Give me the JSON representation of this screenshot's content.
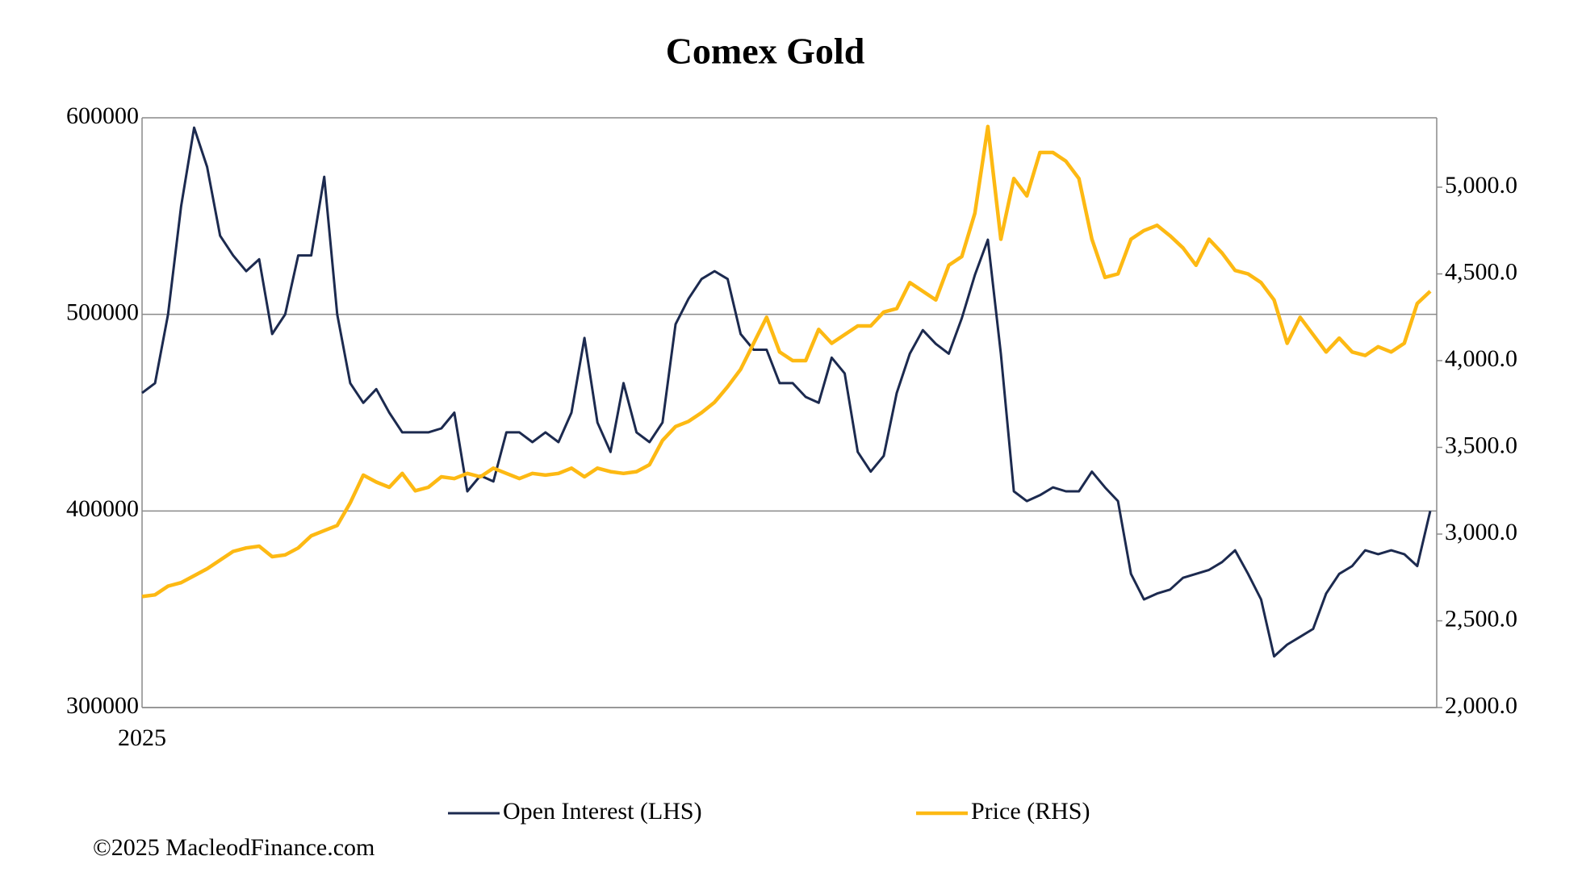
{
  "chart_data": {
    "type": "line",
    "title": "Comex Gold",
    "categories": [
      "2025",
      null,
      null,
      null,
      null,
      null,
      null,
      null,
      null,
      null,
      null,
      null,
      null,
      null,
      null,
      null,
      null,
      null,
      null,
      null,
      null,
      null,
      null,
      null,
      null,
      null,
      null,
      null,
      null,
      null,
      null,
      null,
      null,
      null,
      null,
      null,
      null,
      null,
      null,
      null,
      null,
      null,
      null,
      null,
      null,
      null,
      null,
      null,
      null,
      null,
      null,
      null,
      null,
      null,
      null,
      null,
      null,
      null,
      null,
      null,
      null,
      null,
      null,
      null,
      null,
      null,
      null,
      null,
      null,
      null,
      null,
      null,
      null,
      null,
      null,
      null,
      null,
      null,
      null,
      null,
      null,
      null,
      null,
      null,
      null,
      null,
      null,
      null,
      null,
      null,
      null,
      null,
      null,
      null,
      null,
      null,
      null,
      null,
      null,
      null
    ],
    "series": [
      {
        "name": "Open Interest (LHS)",
        "color": "#1c2a4f",
        "axis": "y",
        "values": [
          460000,
          465000,
          500000,
          555000,
          595000,
          575000,
          540000,
          530000,
          522000,
          528000,
          490000,
          500000,
          530000,
          530000,
          570000,
          500000,
          465000,
          455000,
          462000,
          450000,
          440000,
          440000,
          440000,
          442000,
          450000,
          410000,
          418000,
          415000,
          440000,
          440000,
          435000,
          440000,
          435000,
          450000,
          488000,
          445000,
          430000,
          465000,
          440000,
          435000,
          445000,
          495000,
          508000,
          518000,
          522000,
          518000,
          490000,
          482000,
          482000,
          465000,
          465000,
          458000,
          455000,
          478000,
          470000,
          430000,
          420000,
          428000,
          460000,
          480000,
          492000,
          485000,
          480000,
          498000,
          520000,
          538000,
          480000,
          410000,
          405000,
          408000,
          412000,
          410000,
          410000,
          420000,
          412000,
          405000,
          368000,
          355000,
          358000,
          360000,
          366000,
          368000,
          370000,
          374000,
          380000,
          368000,
          355000,
          326000,
          332000,
          336000,
          340000,
          358000,
          368000,
          372000,
          380000,
          378000,
          380000,
          378000,
          372000,
          400000
        ]
      },
      {
        "name": "Price (RHS)",
        "color": "#fdb913",
        "axis": "y2",
        "values": [
          2640,
          2650,
          2700,
          2720,
          2760,
          2800,
          2850,
          2900,
          2920,
          2930,
          2870,
          2880,
          2920,
          2990,
          3020,
          3050,
          3180,
          3340,
          3300,
          3270,
          3350,
          3250,
          3270,
          3330,
          3320,
          3350,
          3330,
          3380,
          3350,
          3320,
          3350,
          3340,
          3350,
          3380,
          3330,
          3380,
          3360,
          3350,
          3360,
          3400,
          3540,
          3620,
          3650,
          3700,
          3760,
          3850,
          3950,
          4100,
          4250,
          4050,
          4000,
          4000,
          4180,
          4100,
          4150,
          4200,
          4200,
          4280,
          4300,
          4450,
          4400,
          4350,
          4550,
          4600,
          4850,
          5350,
          4700,
          5050,
          4950,
          5200,
          5200,
          5150,
          5050,
          4700,
          4480,
          4500,
          4700,
          4750,
          4780,
          4720,
          4650,
          4550,
          4700,
          4620,
          4520,
          4500,
          4450,
          4350,
          4100,
          4250,
          4150,
          4050,
          4130,
          4050,
          4030,
          4080,
          4050,
          4100,
          4330,
          4400
        ]
      }
    ],
    "ylim": [
      300000,
      600000
    ],
    "yticks": [
      300000,
      400000,
      500000,
      600000
    ],
    "y2lim": [
      2000,
      5400
    ],
    "y2ticks": [
      {
        "value": 2000,
        "label": "2,000.0"
      },
      {
        "value": 2500,
        "label": "2,500.0"
      },
      {
        "value": 3000,
        "label": "3,000.0"
      },
      {
        "value": 3500,
        "label": "3,500.0"
      },
      {
        "value": 4000,
        "label": "4,000.0"
      },
      {
        "value": 4500,
        "label": "4,500.0"
      },
      {
        "value": 5000,
        "label": "5,000.0"
      }
    ],
    "grid": true,
    "legend": "bottom",
    "footnote": "©2025 MacleodFinance.com"
  }
}
